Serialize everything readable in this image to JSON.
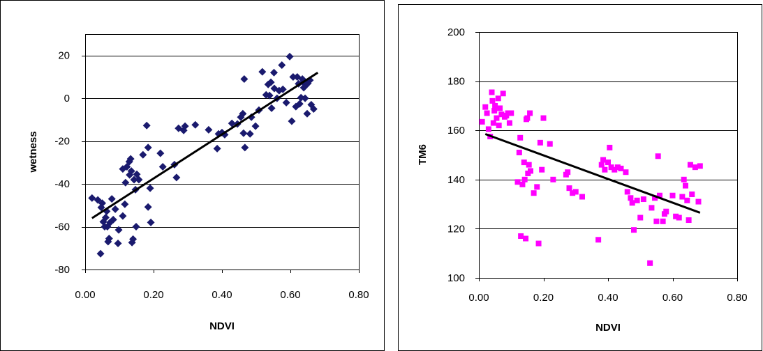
{
  "chart_data": [
    {
      "type": "scatter",
      "xlabel": "NDVI",
      "ylabel": "wetness",
      "xlim": [
        0,
        0.8
      ],
      "ylim": [
        -80,
        30
      ],
      "xticks": [
        "0.00",
        "0.20",
        "0.40",
        "0.60",
        "0.80"
      ],
      "yticks": [
        "-80",
        "-60",
        "-40",
        "-20",
        "0",
        "20"
      ],
      "grid": true,
      "marker": "diamond",
      "color": "#1a1a6e",
      "points": [
        [
          0.02,
          -46.6
        ],
        [
          0.037,
          -47.5
        ],
        [
          0.045,
          -72.6
        ],
        [
          0.047,
          -51
        ],
        [
          0.05,
          -49
        ],
        [
          0.053,
          -57.7
        ],
        [
          0.057,
          -60
        ],
        [
          0.06,
          -55.7
        ],
        [
          0.063,
          -52.8
        ],
        [
          0.065,
          -60
        ],
        [
          0.067,
          -67
        ],
        [
          0.07,
          -65.5
        ],
        [
          0.073,
          -58
        ],
        [
          0.078,
          -47
        ],
        [
          0.082,
          -56.7
        ],
        [
          0.088,
          -51.8
        ],
        [
          0.098,
          -61.5
        ],
        [
          0.096,
          -67.8
        ],
        [
          0.11,
          -55
        ],
        [
          0.116,
          -49.5
        ],
        [
          0.118,
          -39.4
        ],
        [
          0.11,
          -33
        ],
        [
          0.122,
          -32
        ],
        [
          0.129,
          -29.6
        ],
        [
          0.13,
          -35.8
        ],
        [
          0.133,
          -28.3
        ],
        [
          0.135,
          -34
        ],
        [
          0.137,
          -67.4
        ],
        [
          0.14,
          -65.8
        ],
        [
          0.143,
          -38
        ],
        [
          0.147,
          -42.7
        ],
        [
          0.149,
          -60
        ],
        [
          0.151,
          -35.5
        ],
        [
          0.157,
          -38
        ],
        [
          0.169,
          -26.4
        ],
        [
          0.18,
          -12.7
        ],
        [
          0.184,
          -23
        ],
        [
          0.184,
          -50.8
        ],
        [
          0.19,
          -42
        ],
        [
          0.192,
          -58
        ],
        [
          0.22,
          -25.7
        ],
        [
          0.227,
          -32
        ],
        [
          0.261,
          -31
        ],
        [
          0.267,
          -37
        ],
        [
          0.273,
          -14
        ],
        [
          0.288,
          -15
        ],
        [
          0.292,
          -13
        ],
        [
          0.322,
          -12.4
        ],
        [
          0.361,
          -14.7
        ],
        [
          0.386,
          -23.5
        ],
        [
          0.39,
          -16.6
        ],
        [
          0.4,
          -16
        ],
        [
          0.408,
          -17
        ],
        [
          0.429,
          -11.7
        ],
        [
          0.445,
          -12
        ],
        [
          0.455,
          -8.8
        ],
        [
          0.461,
          -7.2
        ],
        [
          0.463,
          -16.3
        ],
        [
          0.467,
          -23
        ],
        [
          0.465,
          9
        ],
        [
          0.482,
          -16.6
        ],
        [
          0.486,
          -8.8
        ],
        [
          0.498,
          -13
        ],
        [
          0.508,
          -5.5
        ],
        [
          0.518,
          12.4
        ],
        [
          0.529,
          1.6
        ],
        [
          0.535,
          6.5
        ],
        [
          0.539,
          1.3
        ],
        [
          0.543,
          7.5
        ],
        [
          0.545,
          -4.6
        ],
        [
          0.553,
          4.6
        ],
        [
          0.552,
          12
        ],
        [
          0.561,
          0
        ],
        [
          0.567,
          3.6
        ],
        [
          0.575,
          15.5
        ],
        [
          0.578,
          4.2
        ],
        [
          0.588,
          -2
        ],
        [
          0.598,
          19.5
        ],
        [
          0.604,
          -10.7
        ],
        [
          0.608,
          10
        ],
        [
          0.616,
          -3.9
        ],
        [
          0.62,
          10
        ],
        [
          0.624,
          6.8
        ],
        [
          0.627,
          -2.6
        ],
        [
          0.631,
          0.3
        ],
        [
          0.635,
          9
        ],
        [
          0.637,
          7.5
        ],
        [
          0.639,
          5
        ],
        [
          0.643,
          0
        ],
        [
          0.645,
          6
        ],
        [
          0.649,
          -7.2
        ],
        [
          0.651,
          7
        ],
        [
          0.657,
          8.5
        ],
        [
          0.661,
          -3
        ],
        [
          0.668,
          -5
        ]
      ],
      "trendline": [
        [
          0.02,
          -56
        ],
        [
          0.68,
          12
        ]
      ]
    },
    {
      "type": "scatter",
      "xlabel": "NDVI",
      "ylabel": "TM6",
      "xlim": [
        0,
        0.8
      ],
      "ylim": [
        100,
        200
      ],
      "xticks": [
        "0.00",
        "0.20",
        "0.40",
        "0.60",
        "0.80"
      ],
      "yticks": [
        "100",
        "120",
        "140",
        "160",
        "180",
        "200"
      ],
      "grid": true,
      "marker": "square",
      "color": "#ff00ff",
      "points": [
        [
          0.01,
          163.5
        ],
        [
          0.02,
          169.5
        ],
        [
          0.025,
          167
        ],
        [
          0.03,
          160.5
        ],
        [
          0.035,
          157.5
        ],
        [
          0.04,
          175.5
        ],
        [
          0.042,
          172
        ],
        [
          0.045,
          163
        ],
        [
          0.048,
          168
        ],
        [
          0.05,
          170
        ],
        [
          0.055,
          165
        ],
        [
          0.06,
          173
        ],
        [
          0.062,
          162
        ],
        [
          0.065,
          169
        ],
        [
          0.07,
          166.5
        ],
        [
          0.075,
          175
        ],
        [
          0.08,
          165.5
        ],
        [
          0.085,
          166
        ],
        [
          0.09,
          167
        ],
        [
          0.095,
          163
        ],
        [
          0.1,
          167
        ],
        [
          0.12,
          139
        ],
        [
          0.125,
          151
        ],
        [
          0.128,
          157
        ],
        [
          0.13,
          117
        ],
        [
          0.135,
          138
        ],
        [
          0.14,
          147
        ],
        [
          0.142,
          140
        ],
        [
          0.145,
          116
        ],
        [
          0.147,
          164.5
        ],
        [
          0.15,
          165
        ],
        [
          0.152,
          142.5
        ],
        [
          0.155,
          146
        ],
        [
          0.158,
          167
        ],
        [
          0.16,
          143.5
        ],
        [
          0.17,
          134.5
        ],
        [
          0.18,
          137
        ],
        [
          0.185,
          114
        ],
        [
          0.19,
          155
        ],
        [
          0.195,
          144
        ],
        [
          0.2,
          165
        ],
        [
          0.22,
          154.5
        ],
        [
          0.23,
          140
        ],
        [
          0.27,
          142
        ],
        [
          0.275,
          143
        ],
        [
          0.28,
          136.5
        ],
        [
          0.29,
          134.5
        ],
        [
          0.3,
          135
        ],
        [
          0.32,
          133
        ],
        [
          0.37,
          115.5
        ],
        [
          0.38,
          146
        ],
        [
          0.385,
          148
        ],
        [
          0.39,
          144
        ],
        [
          0.4,
          147
        ],
        [
          0.405,
          153
        ],
        [
          0.41,
          145
        ],
        [
          0.42,
          144
        ],
        [
          0.43,
          145
        ],
        [
          0.44,
          144.5
        ],
        [
          0.455,
          143
        ],
        [
          0.46,
          135
        ],
        [
          0.47,
          132.5
        ],
        [
          0.475,
          130.5
        ],
        [
          0.48,
          119.5
        ],
        [
          0.49,
          131.5
        ],
        [
          0.5,
          124.5
        ],
        [
          0.51,
          132
        ],
        [
          0.53,
          106
        ],
        [
          0.535,
          128.5
        ],
        [
          0.545,
          132.5
        ],
        [
          0.55,
          123
        ],
        [
          0.555,
          149.5
        ],
        [
          0.56,
          133.5
        ],
        [
          0.57,
          123
        ],
        [
          0.575,
          126
        ],
        [
          0.58,
          127
        ],
        [
          0.6,
          133.5
        ],
        [
          0.61,
          125
        ],
        [
          0.62,
          124.5
        ],
        [
          0.63,
          133
        ],
        [
          0.635,
          140
        ],
        [
          0.64,
          137.5
        ],
        [
          0.645,
          131.5
        ],
        [
          0.65,
          123.5
        ],
        [
          0.655,
          146
        ],
        [
          0.66,
          134
        ],
        [
          0.67,
          145
        ],
        [
          0.68,
          131
        ],
        [
          0.685,
          145.5
        ]
      ],
      "trendline": [
        [
          0.02,
          158.5
        ],
        [
          0.685,
          126.5
        ]
      ]
    }
  ]
}
